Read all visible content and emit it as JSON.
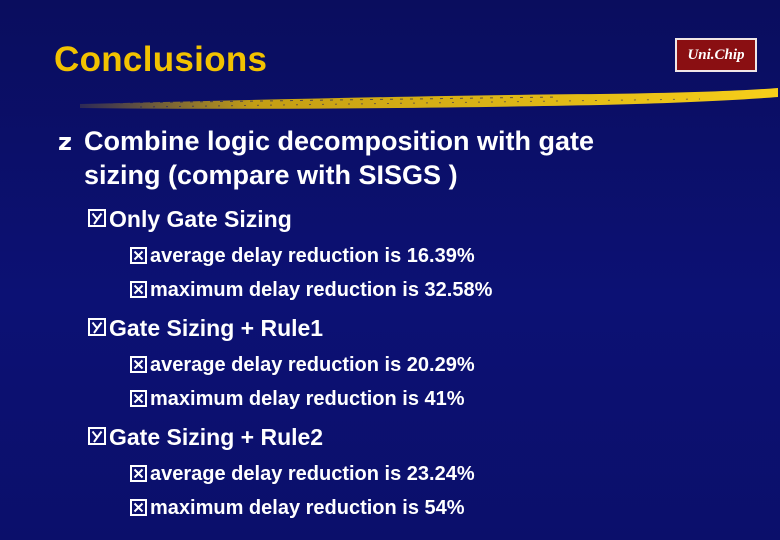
{
  "slide": {
    "title": "Conclusions",
    "logo_text": "Uni.Chip",
    "accent_color": "#f2c200",
    "background_color": "#0b0f6b",
    "logo_color": "#8a0f12"
  },
  "bullets": {
    "main": {
      "glyph": "z",
      "line1": "Combine logic decomposition with gate",
      "line2": "sizing (compare with SISGS )"
    },
    "groups": [
      {
        "heading": "Only Gate Sizing",
        "items": [
          "average delay reduction is 16.39%",
          "maximum delay reduction is 32.58%"
        ]
      },
      {
        "heading": "Gate Sizing + Rule1",
        "items": [
          "average delay reduction is 20.29%",
          "maximum delay reduction is 41%"
        ]
      },
      {
        "heading": "Gate Sizing + Rule2",
        "items": [
          "average delay reduction is 23.24%",
          "maximum delay reduction is 54%"
        ]
      }
    ]
  }
}
